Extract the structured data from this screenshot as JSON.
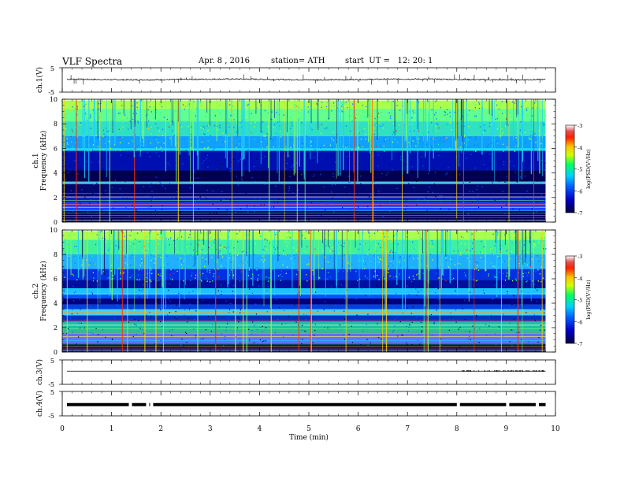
{
  "header": {
    "title": "VLF Spectra",
    "date": "Apr. 8 , 2016",
    "station": "station= ATH",
    "start": "start  UT =   12: 20: 1"
  },
  "colors": {
    "spectrogram_scale": [
      "#000050",
      "#0000c8",
      "#0050ff",
      "#00c8ff",
      "#00ff80",
      "#c8ff00",
      "#ffc800",
      "#ff3000",
      "#e00000",
      "#ffffff"
    ],
    "trace": "#000000"
  },
  "chart_data": [
    {
      "type": "line",
      "panel": "ch1-waveform",
      "ylabel": "ch.1(V)",
      "ylim": [
        -5,
        5
      ],
      "yticks": [
        "5",
        "-5"
      ],
      "xlim": [
        0,
        10
      ],
      "description_values": {
        "baseline_v": 0.2,
        "noise_amplitude_v": 0.4
      }
    },
    {
      "type": "heatmap",
      "panel": "ch1-spectrogram",
      "ylabel_channel": "ch.1",
      "ylabel": "Frequency (kHz)",
      "ylim": [
        0,
        10
      ],
      "yticks": [
        "0",
        "2",
        "4",
        "6",
        "8",
        "10"
      ],
      "xlim": [
        0,
        9.8
      ],
      "colorbar": {
        "label": "log(PSD(V²/Hz)",
        "range": [
          -7,
          -3
        ],
        "ticks": [
          "-3",
          "-4",
          "-5",
          "-6",
          "-7"
        ]
      }
    },
    {
      "type": "heatmap",
      "panel": "ch2-spectrogram",
      "ylabel_channel": "ch.2",
      "ylabel": "Frequency (kHz)",
      "ylim": [
        0,
        10
      ],
      "yticks": [
        "0",
        "2",
        "4",
        "6",
        "8",
        "10"
      ],
      "xlim": [
        0,
        9.8
      ],
      "colorbar": {
        "label": "log(PSD(V²/Hz)",
        "range": [
          -7,
          -3
        ],
        "ticks": [
          "-3",
          "-4",
          "-5",
          "-6",
          "-7"
        ]
      }
    },
    {
      "type": "line",
      "panel": "ch3-waveform",
      "ylabel": "ch.3(V)",
      "ylim": [
        -5,
        5
      ],
      "yticks": [
        "5",
        "-5"
      ],
      "xlim": [
        0,
        10
      ],
      "description_values": {
        "baseline_v": 0.4
      }
    },
    {
      "type": "line",
      "panel": "ch4-waveform",
      "ylabel": "ch.4(V)",
      "ylim": [
        -5,
        5
      ],
      "yticks": [
        "5",
        "-5"
      ],
      "xlim": [
        0,
        10
      ],
      "description_values": {
        "baseline_v": -0.4
      }
    }
  ],
  "xaxis": {
    "label": "Time  (min)",
    "range": [
      0,
      10
    ],
    "ticks": [
      "0",
      "1",
      "2",
      "3",
      "4",
      "5",
      "6",
      "7",
      "8",
      "9",
      "10"
    ]
  }
}
